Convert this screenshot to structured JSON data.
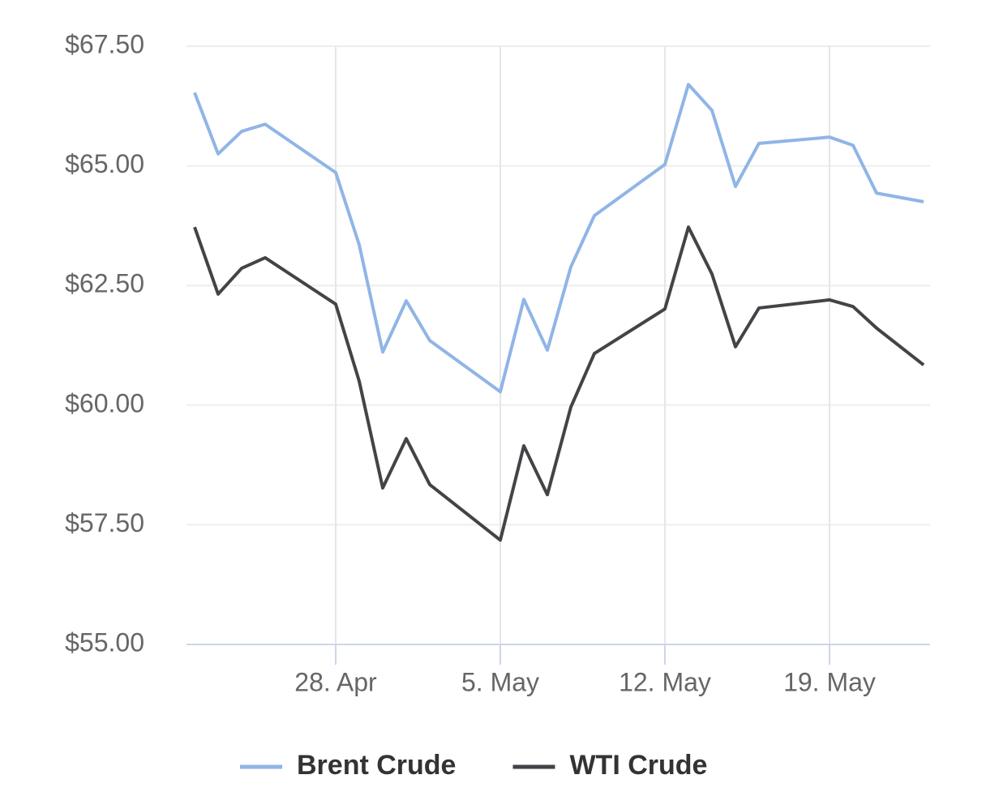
{
  "chart_data": {
    "type": "line",
    "x": [
      "22. Apr",
      "23. Apr",
      "24. Apr",
      "25. Apr",
      "28. Apr",
      "29. Apr",
      "30. Apr",
      "1. May",
      "2. May",
      "5. May",
      "6. May",
      "7. May",
      "8. May",
      "9. May",
      "12. May",
      "13. May",
      "14. May",
      "15. May",
      "16. May",
      "19. May",
      "20. May",
      "21. May",
      "23. May"
    ],
    "series": [
      {
        "name": "Brent Crude",
        "color": "#90b5e6",
        "values": [
          66.53,
          65.25,
          65.72,
          65.87,
          64.86,
          63.35,
          61.11,
          62.18,
          61.35,
          60.28,
          62.21,
          61.15,
          62.89,
          63.96,
          65.03,
          66.7,
          66.16,
          64.57,
          65.47,
          65.6,
          65.43,
          64.43,
          64.25
        ]
      },
      {
        "name": "WTI Crude",
        "color": "#434348",
        "values": [
          63.72,
          62.32,
          62.86,
          63.08,
          62.11,
          60.5,
          58.27,
          59.3,
          58.34,
          57.18,
          59.15,
          58.13,
          59.96,
          61.08,
          62.01,
          63.72,
          62.74,
          61.22,
          62.03,
          62.2,
          62.06,
          61.61,
          60.84
        ]
      }
    ],
    "xlim": [
      "22. Apr",
      "23. May"
    ],
    "xticks": [
      "28. Apr",
      "5. May",
      "12. May",
      "19. May"
    ],
    "ylim": [
      55,
      67.5
    ],
    "yticks": [
      {
        "value": 55,
        "label": "$55.00"
      },
      {
        "value": 57.5,
        "label": "$57.50"
      },
      {
        "value": 60,
        "label": "$60.00"
      },
      {
        "value": 62.5,
        "label": "$62.50"
      },
      {
        "value": 65,
        "label": "$65.00"
      },
      {
        "value": 67.5,
        "label": "$67.50"
      }
    ],
    "grid": true
  }
}
